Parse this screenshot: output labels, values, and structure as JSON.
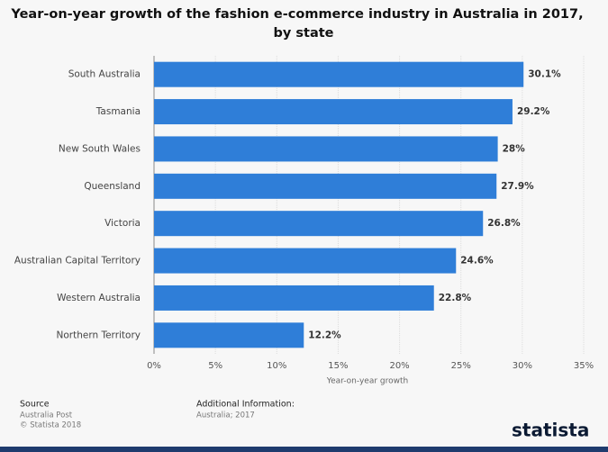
{
  "chart_data": {
    "type": "bar",
    "orientation": "horizontal",
    "title": "Year-on-year growth of the fashion e-commerce industry in Australia in 2017,",
    "subtitle": "by state",
    "categories": [
      "South Australia",
      "Tasmania",
      "New South Wales",
      "Queensland",
      "Victoria",
      "Australian Capital Territory",
      "Western Australia",
      "Northern Territory"
    ],
    "values": [
      30.1,
      29.2,
      28,
      27.9,
      26.8,
      24.6,
      22.8,
      12.2
    ],
    "value_labels": [
      "30.1%",
      "29.2%",
      "28%",
      "27.9%",
      "26.8%",
      "24.6%",
      "22.8%",
      "12.2%"
    ],
    "color": "#2f7ed8",
    "xlim": [
      0,
      35
    ],
    "xticks": [
      {
        "value": 0,
        "label": "0%"
      },
      {
        "value": 5,
        "label": "5%"
      },
      {
        "value": 10,
        "label": "10%"
      },
      {
        "value": 15,
        "label": "15%"
      },
      {
        "value": 20,
        "label": "20%"
      },
      {
        "value": 25,
        "label": "25%"
      },
      {
        "value": 30,
        "label": "30%"
      },
      {
        "value": 35,
        "label": "35%"
      }
    ],
    "xlabel": "Year-on-year growth",
    "grid": true
  },
  "footer": {
    "source_title": "Source",
    "source": "Australia Post",
    "copyright": "© Statista 2018",
    "info_title": "Additional Information:",
    "info": "Australia; 2017",
    "logo": "statista"
  }
}
